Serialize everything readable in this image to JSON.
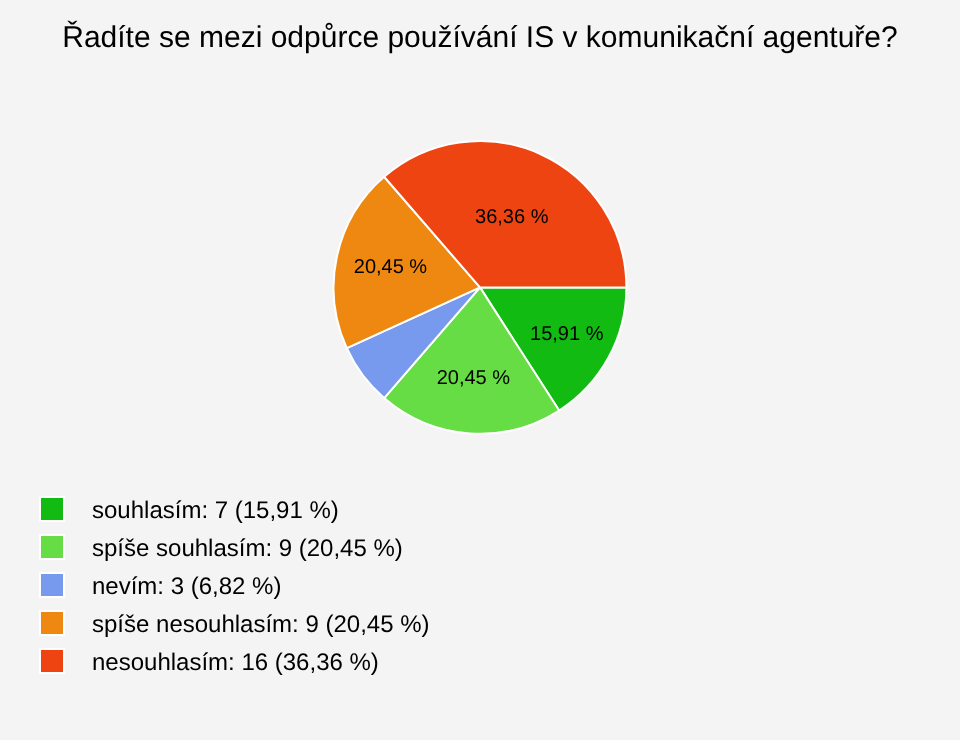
{
  "chart_data": {
    "type": "pie",
    "title": "Řadíte se mezi odpůrce používání IS v komunikační agentuře?",
    "categories": [
      "souhlasím: 7 (15,91 %)",
      "spíše souhlasím: 9 (20,45 %)",
      "nevím: 3 (6,82 %)",
      "spíše nesouhlasím: 9 (20,45 %)",
      "nesouhlasím: 16 (36,36 %)"
    ],
    "values": [
      15.91,
      20.45,
      6.82,
      20.45,
      36.36
    ],
    "value_labels": [
      "15,91 %",
      "20,45 %",
      null,
      "20,45 %",
      "36,36 %"
    ],
    "colors": [
      "#11bb11",
      "#66dd44",
      "#7799ee",
      "#ee8811",
      "#ee4411"
    ],
    "legend": "bottom left"
  }
}
